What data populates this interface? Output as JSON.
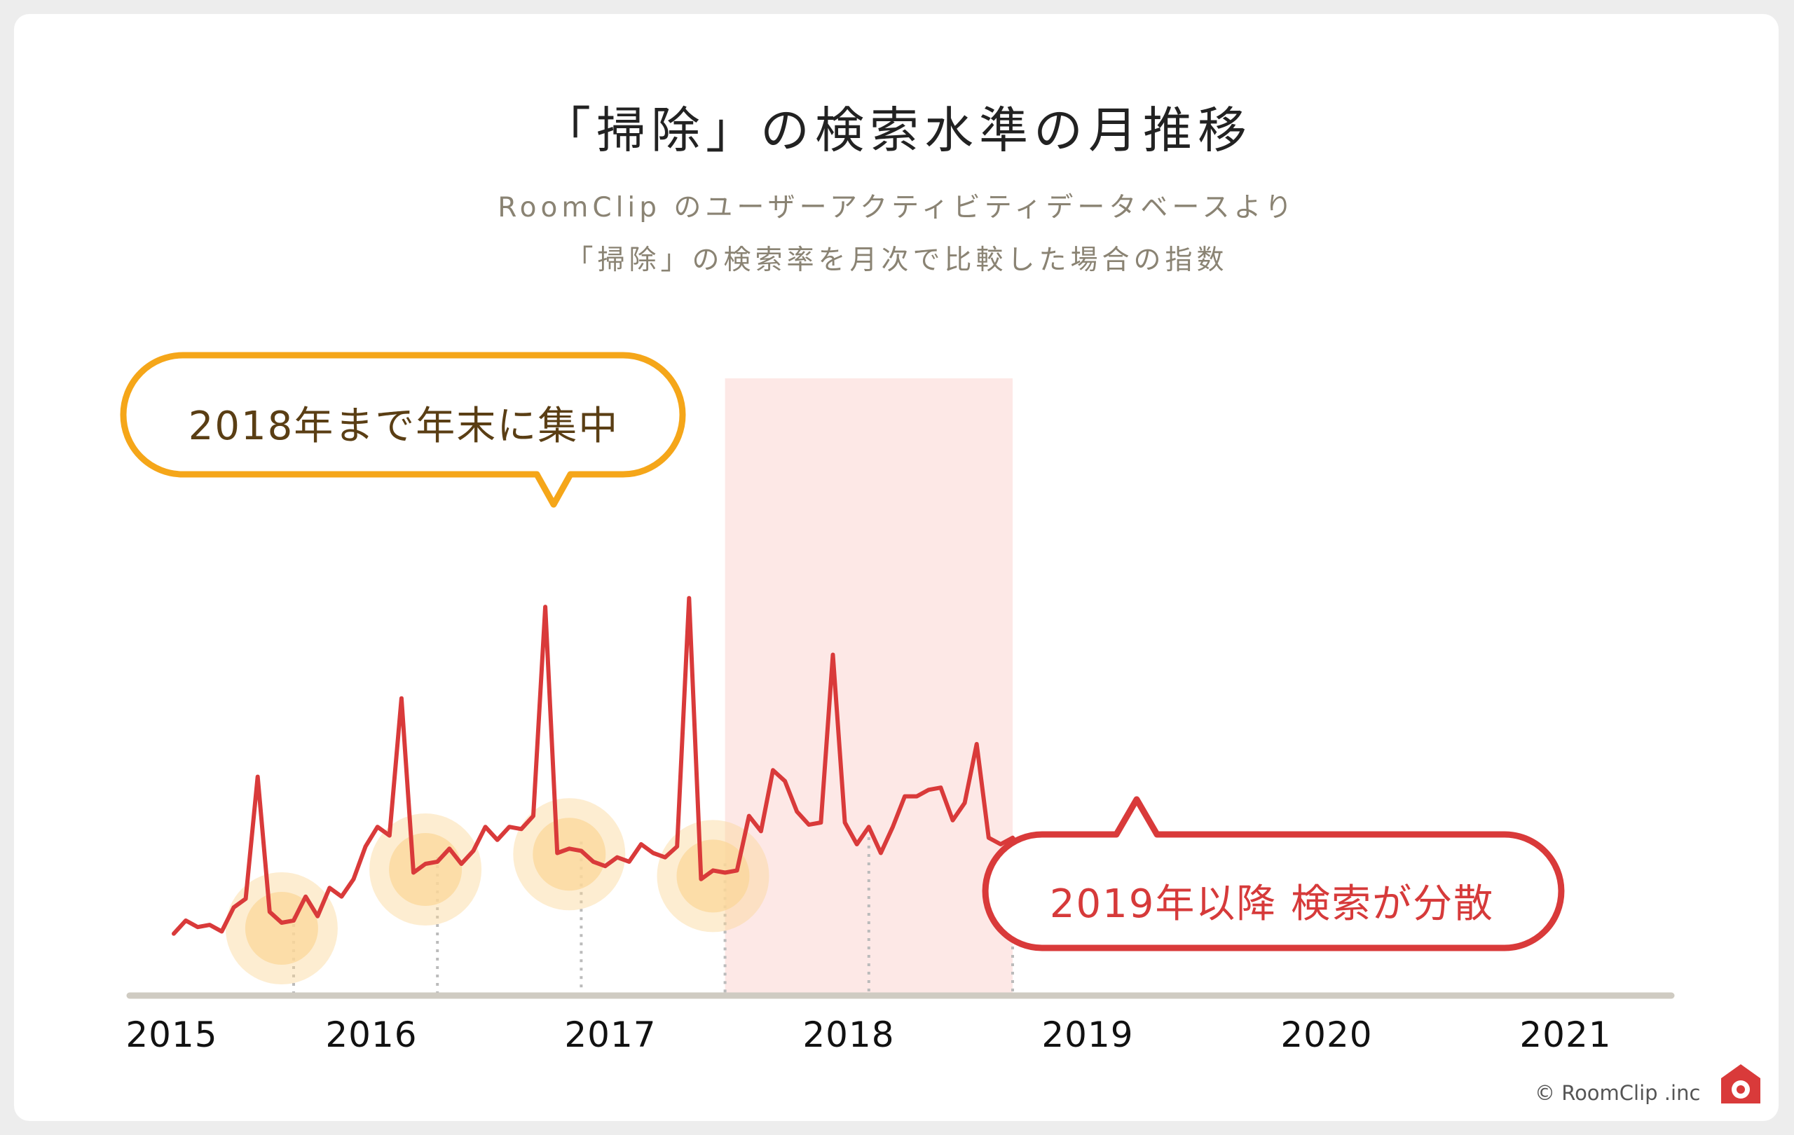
{
  "header": {
    "title": "「掃除」の検索水準の月推移",
    "subtitle_line1": "RoomClip のユーザーアクティビティデータベースより",
    "subtitle_line2": "「掃除」の検索率を月次で比較した場合の指数"
  },
  "annotations": {
    "callout_orange": "2018年まで年末に集中",
    "callout_red": "2019年以降 検索が分散"
  },
  "footer": {
    "copyright": "© RoomClip .inc",
    "logo_icon": "camera-house-icon"
  },
  "colors": {
    "line": "#d93a3a",
    "highlight_band": "#fde8e6",
    "callout_orange": "#f5a619",
    "callout_red": "#d93a3a",
    "peak_glow": "#fbd79a",
    "axis": "#cfcbc2",
    "guide": "#bbbbbb"
  },
  "chart_data": {
    "type": "line",
    "x_start": "2015-01",
    "x_end": "2021-04",
    "x_tick_labels": [
      "2015",
      "2016",
      "2017",
      "2018",
      "2019",
      "2020",
      "2021"
    ],
    "dotted_guides": [
      "2015-11",
      "2016-11",
      "2017-11",
      "2018-11",
      "2019-11",
      "2020-11"
    ],
    "highlight_range": [
      "2018-11",
      "2020-11"
    ],
    "highlighted_peaks": [
      "2015-10",
      "2016-10",
      "2017-10",
      "2018-10"
    ],
    "y_axis_shown": false,
    "ylim": [
      0,
      100
    ],
    "series": [
      {
        "values": [
          2,
          5,
          3.5,
          4,
          2.5,
          8,
          10,
          38,
          7,
          4.5,
          5,
          10.5,
          6,
          12.5,
          10.5,
          14.5,
          22,
          26.5,
          24.5,
          56,
          16,
          18,
          18.5,
          21.5,
          18,
          21,
          26.5,
          23.5,
          26.5,
          26,
          29,
          77,
          20.5,
          21.5,
          21,
          18.5,
          17.5,
          19.5,
          18.5,
          22.5,
          20.5,
          19.5,
          22,
          79,
          14.5,
          16.5,
          16,
          16.5,
          29,
          25.5,
          39.5,
          37,
          30,
          27,
          27.5,
          66,
          27.5,
          22.5,
          26.5,
          20.5,
          26.5,
          33.5,
          33.5,
          35,
          35.5,
          28,
          32,
          45.5,
          24,
          22.5,
          24,
          20.5,
          21,
          22.5
        ]
      }
    ]
  }
}
